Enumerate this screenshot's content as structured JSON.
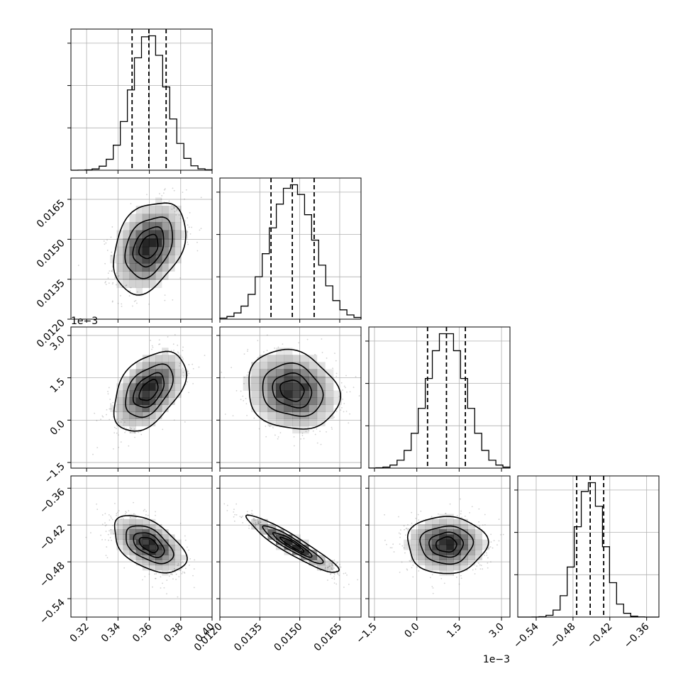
{
  "chart_data": {
    "type": "corner",
    "description_free": true,
    "parameters": [
      {
        "index": 0,
        "mean": 0.3597,
        "std": 0.0111,
        "range": [
          0.31,
          0.4
        ],
        "ticks": [
          0.32,
          0.34,
          0.36,
          0.38,
          0.4
        ],
        "tick_labels": [
          "0.32",
          "0.34",
          "0.36",
          "0.38",
          "0.40"
        ],
        "quantiles": [
          0.349,
          0.3597,
          0.3707
        ],
        "offset_label": ""
      },
      {
        "index": 1,
        "mean": 0.01472,
        "std": 0.00083,
        "range": [
          0.012,
          0.0173
        ],
        "ticks": [
          0.012,
          0.0135,
          0.015,
          0.0165
        ],
        "tick_labels": [
          "0.0120",
          "0.0135",
          "0.0150",
          "0.0165"
        ],
        "quantiles": [
          0.01392,
          0.01472,
          0.01554
        ],
        "offset_label": ""
      },
      {
        "index": 2,
        "mean": 1.05,
        "std": 0.68,
        "range": [
          -1.7,
          3.3
        ],
        "ticks": [
          -1.5,
          0.0,
          1.5,
          3.0
        ],
        "tick_labels": [
          "−1.5",
          "0.0",
          "1.5",
          "3.0"
        ],
        "quantiles": [
          0.38,
          1.05,
          1.72
        ],
        "offset_label": "1e−3"
      },
      {
        "index": 3,
        "mean": -0.452,
        "std": 0.0225,
        "range": [
          -0.57,
          -0.34
        ],
        "ticks": [
          -0.54,
          -0.48,
          -0.42,
          -0.36
        ],
        "tick_labels": [
          "−0.54",
          "−0.48",
          "−0.42",
          "−0.36"
        ],
        "quantiles": [
          -0.474,
          -0.452,
          -0.43
        ],
        "offset_label": ""
      }
    ],
    "correlations": {
      "0-1": 0.32,
      "0-2": 0.45,
      "1-2": -0.15,
      "0-3": -0.5,
      "1-3": -0.93,
      "2-3": 0.0
    },
    "contour_levels_sigma": [
      0.5,
      1.0,
      1.5,
      2.0
    ],
    "grid": true
  }
}
